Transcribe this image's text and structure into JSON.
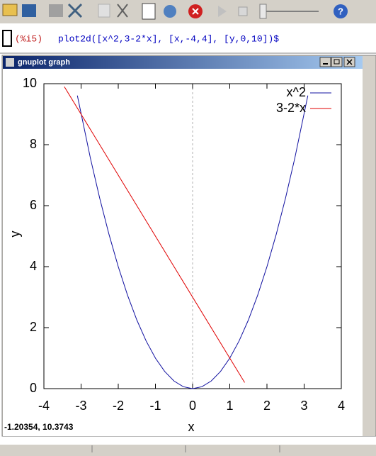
{
  "input": {
    "prompt": "(%i5)",
    "command": "plot2d([x^2,3-2*x], [x,-4,4], [y,0,10])$"
  },
  "window": {
    "title": "gnuplot graph",
    "status": "-1.20354, 10.3743"
  },
  "chart_data": {
    "type": "line",
    "x_label": "x",
    "y_label": "y",
    "xlim": [
      -4,
      4
    ],
    "ylim": [
      0,
      10
    ],
    "xticks": [
      -4,
      -3,
      -2,
      -1,
      0,
      1,
      2,
      3,
      4
    ],
    "yticks": [
      0,
      2,
      4,
      6,
      8,
      10
    ],
    "zeroaxis": true,
    "legend": "top-right",
    "series": [
      {
        "name": "x^2",
        "color": "#1010a0",
        "x": [
          -3.1,
          -2.75,
          -2.5,
          -2.25,
          -2,
          -1.75,
          -1.5,
          -1.25,
          -1,
          -0.75,
          -0.5,
          -0.25,
          0,
          0.25,
          0.5,
          0.75,
          1,
          1.25,
          1.5,
          1.75,
          2,
          2.25,
          2.5,
          2.75,
          3.1
        ],
        "values": [
          9.61,
          7.5625,
          6.25,
          5.0625,
          4,
          3.0625,
          2.25,
          1.5625,
          1,
          0.5625,
          0.25,
          0.0625,
          0,
          0.0625,
          0.25,
          0.5625,
          1,
          1.5625,
          2.25,
          3.0625,
          4,
          5.0625,
          6.25,
          7.5625,
          9.61
        ]
      },
      {
        "name": "3-2*x",
        "color": "#e00000",
        "x": [
          -3.45,
          1.4
        ],
        "values": [
          9.9,
          0.2
        ]
      }
    ]
  }
}
